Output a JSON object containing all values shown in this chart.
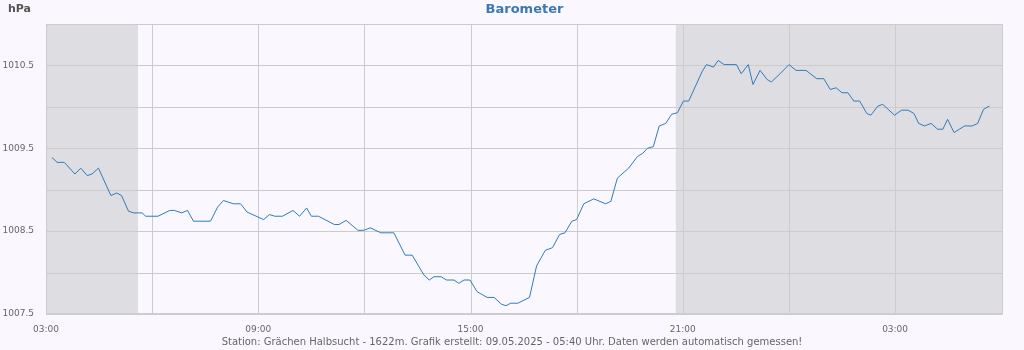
{
  "chart_data": {
    "type": "line",
    "title": "Barometer",
    "ylabel": "hPa",
    "annotations": [
      "Station: Grächen Halbsucht - 1622m. Grafik erstellt: 09.05.2025 - 05:40 Uhr. Daten werden automatisch gemessen!"
    ],
    "series": [
      {
        "color": "#2f7bbf",
        "x": [
          "2025-05-08T03:10",
          "2025-05-08T03:19",
          "2025-05-08T03:31",
          "2025-05-08T03:49",
          "2025-05-08T03:59",
          "2025-05-08T04:10",
          "2025-05-08T04:18",
          "2025-05-08T04:29",
          "2025-05-08T04:50",
          "2025-05-08T05:00",
          "2025-05-08T05:08",
          "2025-05-08T05:20",
          "2025-05-08T05:29",
          "2025-05-08T05:43",
          "2025-05-08T05:49",
          "2025-05-08T06:10",
          "2025-05-08T06:30",
          "2025-05-08T06:38",
          "2025-05-08T06:50",
          "2025-05-08T07:00",
          "2025-05-08T07:10",
          "2025-05-08T07:39",
          "2025-05-08T07:51",
          "2025-05-08T08:01",
          "2025-05-08T08:18",
          "2025-05-08T08:30",
          "2025-05-08T08:41",
          "2025-05-08T09:09",
          "2025-05-08T09:19",
          "2025-05-08T09:28",
          "2025-05-08T09:41",
          "2025-05-08T09:59",
          "2025-05-08T10:10",
          "2025-05-08T10:22",
          "2025-05-08T10:30",
          "2025-05-08T10:42",
          "2025-05-08T11:09",
          "2025-05-08T11:17",
          "2025-05-08T11:29",
          "2025-05-08T11:49",
          "2025-05-08T11:59",
          "2025-05-08T12:10",
          "2025-05-08T12:28",
          "2025-05-08T12:50",
          "2025-05-08T13:09",
          "2025-05-08T13:21",
          "2025-05-08T13:41",
          "2025-05-08T13:50",
          "2025-05-08T13:58",
          "2025-05-08T14:10",
          "2025-05-08T14:19",
          "2025-05-08T14:32",
          "2025-05-08T14:40",
          "2025-05-08T14:49",
          "2025-05-08T14:59",
          "2025-05-08T15:11",
          "2025-05-08T15:28",
          "2025-05-08T15:40",
          "2025-05-08T15:52",
          "2025-05-08T16:00",
          "2025-05-08T16:08",
          "2025-05-08T16:20",
          "2025-05-08T16:40",
          "2025-05-08T16:52",
          "2025-05-08T16:59",
          "2025-05-08T17:07",
          "2025-05-08T17:19",
          "2025-05-08T17:31",
          "2025-05-08T17:40",
          "2025-05-08T17:52",
          "2025-05-08T18:00",
          "2025-05-08T18:12",
          "2025-05-08T18:29",
          "2025-05-08T18:49",
          "2025-05-08T18:58",
          "2025-05-08T19:09",
          "2025-05-08T19:28",
          "2025-05-08T19:43",
          "2025-05-08T19:52",
          "2025-05-08T20:00",
          "2025-05-08T20:10",
          "2025-05-08T20:20",
          "2025-05-08T20:31",
          "2025-05-08T20:41",
          "2025-05-08T20:51",
          "2025-05-08T21:01",
          "2025-05-08T21:10",
          "2025-05-08T21:33",
          "2025-05-08T21:40",
          "2025-05-08T21:52",
          "2025-05-08T22:00",
          "2025-05-08T22:10",
          "2025-05-08T22:31",
          "2025-05-08T22:39",
          "2025-05-08T22:51",
          "2025-05-08T22:59",
          "2025-05-08T23:11",
          "2025-05-08T23:23",
          "2025-05-08T23:30",
          "2025-05-08T23:45",
          "2025-05-09T00:00",
          "2025-05-09T00:12",
          "2025-05-09T00:29",
          "2025-05-09T00:47",
          "2025-05-09T00:59",
          "2025-05-09T01:10",
          "2025-05-09T01:20",
          "2025-05-09T01:30",
          "2025-05-09T01:40",
          "2025-05-09T01:50",
          "2025-05-09T02:00",
          "2025-05-09T02:12",
          "2025-05-09T02:19",
          "2025-05-09T02:31",
          "2025-05-09T02:39",
          "2025-05-09T02:59",
          "2025-05-09T03:11",
          "2025-05-09T03:22",
          "2025-05-09T03:32",
          "2025-05-09T03:40",
          "2025-05-09T03:50",
          "2025-05-09T04:01",
          "2025-05-09T04:12",
          "2025-05-09T04:21",
          "2025-05-09T04:29",
          "2025-05-09T04:40",
          "2025-05-09T04:58",
          "2025-05-09T05:11",
          "2025-05-09T05:20",
          "2025-05-09T05:30",
          "2025-05-09T05:40"
        ],
        "values": [
          1009.39,
          1009.33,
          1009.33,
          1009.19,
          1009.26,
          1009.17,
          1009.19,
          1009.26,
          1008.93,
          1008.96,
          1008.93,
          1008.74,
          1008.72,
          1008.72,
          1008.68,
          1008.68,
          1008.75,
          1008.75,
          1008.72,
          1008.75,
          1008.62,
          1008.62,
          1008.79,
          1008.87,
          1008.83,
          1008.83,
          1008.73,
          1008.64,
          1008.7,
          1008.68,
          1008.68,
          1008.75,
          1008.68,
          1008.78,
          1008.68,
          1008.68,
          1008.58,
          1008.58,
          1008.63,
          1008.51,
          1008.51,
          1008.54,
          1008.48,
          1008.48,
          1008.21,
          1008.21,
          1007.97,
          1007.91,
          1007.95,
          1007.95,
          1007.91,
          1007.91,
          1007.87,
          1007.91,
          1007.91,
          1007.77,
          1007.7,
          1007.7,
          1007.62,
          1007.6,
          1007.63,
          1007.63,
          1007.7,
          1008.08,
          1008.17,
          1008.27,
          1008.3,
          1008.46,
          1008.48,
          1008.62,
          1008.64,
          1008.83,
          1008.89,
          1008.83,
          1008.86,
          1009.14,
          1009.26,
          1009.4,
          1009.44,
          1009.5,
          1009.52,
          1009.77,
          1009.8,
          1009.91,
          1009.93,
          1010.07,
          1010.07,
          1010.43,
          1010.51,
          1010.48,
          1010.56,
          1010.51,
          1010.51,
          1010.4,
          1010.51,
          1010.27,
          1010.44,
          1010.33,
          1010.3,
          1010.4,
          1010.51,
          1010.44,
          1010.44,
          1010.34,
          1010.34,
          1010.21,
          1010.23,
          1010.17,
          1010.17,
          1010.07,
          1010.07,
          1009.92,
          1009.9,
          1010.01,
          1010.03,
          1009.9,
          1009.96,
          1009.96,
          1009.92,
          1009.8,
          1009.77,
          1009.8,
          1009.73,
          1009.73,
          1009.85,
          1009.69,
          1009.77,
          1009.77,
          1009.8,
          1009.97,
          1010.01
        ]
      }
    ],
    "xlim": [
      "2025-05-08T03:00",
      "2025-05-09T06:03"
    ],
    "xticks": [
      {
        "value": "2025-05-08T03:00",
        "label": "03:00"
      },
      {
        "value": "2025-05-08T06:00",
        "label": null
      },
      {
        "value": "2025-05-08T09:00",
        "label": "09:00"
      },
      {
        "value": "2025-05-08T12:00",
        "label": null
      },
      {
        "value": "2025-05-08T15:00",
        "label": "15:00"
      },
      {
        "value": "2025-05-08T18:00",
        "label": null
      },
      {
        "value": "2025-05-08T21:00",
        "label": "21:00"
      },
      {
        "value": "2025-05-09T00:00",
        "label": null
      },
      {
        "value": "2025-05-09T03:00",
        "label": "03:00"
      }
    ],
    "ylim": [
      1007.5,
      1011
    ],
    "yticks": [
      1007.5,
      {
        "value": 1008,
        "label": null
      },
      1008.5,
      {
        "value": 1009,
        "label": null
      },
      1009.5,
      {
        "value": 1010,
        "label": null
      },
      1010.5
    ],
    "bands": [
      {
        "axis": "x",
        "from": "2025-05-08T03:00",
        "to": "2025-05-08T05:36",
        "color": "#dedee2"
      },
      {
        "axis": "x",
        "from": "2025-05-08T20:48",
        "to": "2025-05-09T06:03",
        "color": "#dedee2"
      }
    ],
    "grid": true,
    "legend": false,
    "marker": "none",
    "line_style": "solid"
  }
}
